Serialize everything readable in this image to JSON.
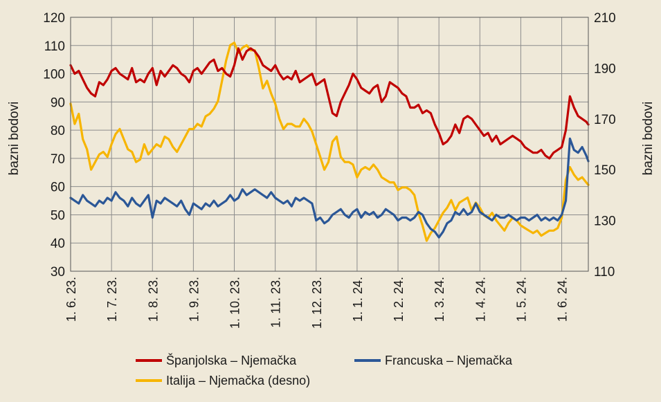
{
  "chart_data": {
    "type": "line",
    "title": "",
    "xlabel": "",
    "ylabel_left": "bazni bodovi",
    "ylabel_right": "bazni bodovi",
    "ylim_left": [
      30,
      120
    ],
    "ylim_right": [
      110,
      210
    ],
    "yticks_left": [
      "30",
      "40",
      "50",
      "60",
      "70",
      "80",
      "90",
      "100",
      "110",
      "120"
    ],
    "yticks_right": [
      "110",
      "130",
      "150",
      "170",
      "190",
      "210"
    ],
    "xticks": [
      "1. 6. 23.",
      "1. 7. 23.",
      "1. 8. 23.",
      "1. 9. 23.",
      "1. 10. 23.",
      "1. 11. 23.",
      "1. 12. 23.",
      "1. 1. 24.",
      "1. 2. 24.",
      "1. 3. 24.",
      "1. 4. 24.",
      "1. 5. 24.",
      "1. 6. 24."
    ],
    "x_end_month": 12.65,
    "grid": true,
    "legend_position": "bottom",
    "series": [
      {
        "name": "Španjolska – Njemačka",
        "axis": "left",
        "color": "#c00000",
        "x": [
          0,
          0.1,
          0.2,
          0.3,
          0.4,
          0.5,
          0.6,
          0.7,
          0.8,
          0.9,
          1,
          1.1,
          1.2,
          1.3,
          1.4,
          1.5,
          1.6,
          1.7,
          1.8,
          1.9,
          2,
          2.1,
          2.2,
          2.3,
          2.4,
          2.5,
          2.6,
          2.7,
          2.8,
          2.9,
          3,
          3.1,
          3.2,
          3.3,
          3.4,
          3.5,
          3.6,
          3.7,
          3.8,
          3.9,
          4,
          4.1,
          4.2,
          4.3,
          4.4,
          4.5,
          4.6,
          4.7,
          4.8,
          4.9,
          5,
          5.1,
          5.2,
          5.3,
          5.4,
          5.5,
          5.6,
          5.7,
          5.8,
          5.9,
          6,
          6.1,
          6.2,
          6.3,
          6.4,
          6.5,
          6.6,
          6.7,
          6.8,
          6.9,
          7,
          7.1,
          7.2,
          7.3,
          7.4,
          7.5,
          7.6,
          7.7,
          7.8,
          7.9,
          8,
          8.1,
          8.2,
          8.3,
          8.4,
          8.5,
          8.6,
          8.7,
          8.8,
          8.9,
          9,
          9.1,
          9.2,
          9.3,
          9.4,
          9.5,
          9.6,
          9.7,
          9.8,
          9.9,
          10,
          10.1,
          10.2,
          10.3,
          10.4,
          10.5,
          10.6,
          10.7,
          10.8,
          10.9,
          11,
          11.1,
          11.2,
          11.3,
          11.4,
          11.5,
          11.6,
          11.7,
          11.8,
          11.9,
          12,
          12.1,
          12.2,
          12.3,
          12.4,
          12.5,
          12.6,
          12.65
        ],
        "values": [
          103,
          100,
          101,
          98,
          95,
          93,
          92,
          97,
          96,
          98,
          101,
          102,
          100,
          99,
          98,
          102,
          97,
          98,
          97,
          100,
          102,
          96,
          101,
          99,
          101,
          103,
          102,
          100,
          99,
          97,
          101,
          102,
          100,
          102,
          104,
          105,
          101,
          102,
          100,
          99,
          103,
          109,
          105,
          108,
          109,
          108,
          106,
          103,
          102,
          101,
          103,
          100,
          98,
          99,
          98,
          101,
          97,
          98,
          99,
          100,
          96,
          97,
          98,
          92,
          86,
          85,
          90,
          93,
          96,
          100,
          98,
          95,
          94,
          93,
          95,
          96,
          90,
          92,
          97,
          96,
          95,
          93,
          92,
          88,
          88,
          89,
          86,
          87,
          86,
          82,
          79,
          75,
          76,
          78,
          82,
          79,
          84,
          85,
          84,
          82,
          80,
          78,
          79,
          76,
          78,
          75,
          76,
          77,
          78,
          77,
          76,
          74,
          73,
          72,
          72,
          73,
          71,
          70,
          72,
          73,
          74,
          80,
          92,
          88,
          85,
          84,
          83,
          82
        ]
      },
      {
        "name": "Francuska – Njemačka",
        "axis": "left",
        "color": "#2b5797",
        "x": [
          0,
          0.1,
          0.2,
          0.3,
          0.4,
          0.5,
          0.6,
          0.7,
          0.8,
          0.9,
          1,
          1.1,
          1.2,
          1.3,
          1.4,
          1.5,
          1.6,
          1.7,
          1.8,
          1.9,
          2,
          2.1,
          2.2,
          2.3,
          2.4,
          2.5,
          2.6,
          2.7,
          2.8,
          2.9,
          3,
          3.1,
          3.2,
          3.3,
          3.4,
          3.5,
          3.6,
          3.7,
          3.8,
          3.9,
          4,
          4.1,
          4.2,
          4.3,
          4.4,
          4.5,
          4.6,
          4.7,
          4.8,
          4.9,
          5,
          5.1,
          5.2,
          5.3,
          5.4,
          5.5,
          5.6,
          5.7,
          5.8,
          5.9,
          6,
          6.1,
          6.2,
          6.3,
          6.4,
          6.5,
          6.6,
          6.7,
          6.8,
          6.9,
          7,
          7.1,
          7.2,
          7.3,
          7.4,
          7.5,
          7.6,
          7.7,
          7.8,
          7.9,
          8,
          8.1,
          8.2,
          8.3,
          8.4,
          8.5,
          8.6,
          8.7,
          8.8,
          8.9,
          9,
          9.1,
          9.2,
          9.3,
          9.4,
          9.5,
          9.6,
          9.7,
          9.8,
          9.9,
          10,
          10.1,
          10.2,
          10.3,
          10.4,
          10.5,
          10.6,
          10.7,
          10.8,
          10.9,
          11,
          11.1,
          11.2,
          11.3,
          11.4,
          11.5,
          11.6,
          11.7,
          11.8,
          11.9,
          12,
          12.1,
          12.2,
          12.3,
          12.4,
          12.5,
          12.6,
          12.65
        ],
        "values": [
          56,
          55,
          54,
          57,
          55,
          54,
          53,
          55,
          54,
          56,
          55,
          58,
          56,
          55,
          53,
          56,
          54,
          53,
          55,
          57,
          49,
          55,
          54,
          56,
          55,
          54,
          53,
          55,
          52,
          50,
          54,
          53,
          52,
          54,
          53,
          55,
          53,
          54,
          55,
          57,
          55,
          56,
          59,
          57,
          58,
          59,
          58,
          57,
          56,
          58,
          56,
          55,
          54,
          55,
          53,
          56,
          55,
          56,
          55,
          54,
          48,
          49,
          47,
          48,
          50,
          51,
          52,
          50,
          49,
          51,
          52,
          49,
          51,
          50,
          51,
          49,
          50,
          52,
          51,
          50,
          48,
          49,
          49,
          48,
          49,
          51,
          50,
          47,
          45,
          44,
          42,
          44,
          47,
          48,
          51,
          50,
          52,
          50,
          51,
          54,
          51,
          50,
          49,
          48,
          50,
          49,
          49,
          50,
          49,
          48,
          49,
          49,
          48,
          49,
          50,
          48,
          49,
          48,
          49,
          48,
          50,
          55,
          77,
          73,
          72,
          74,
          71,
          69
        ]
      },
      {
        "name": "Italija – Njemačka (desno)",
        "axis": "right",
        "color": "#f7b500",
        "x": [
          0,
          0.1,
          0.2,
          0.3,
          0.4,
          0.5,
          0.6,
          0.7,
          0.8,
          0.9,
          1,
          1.1,
          1.2,
          1.3,
          1.4,
          1.5,
          1.6,
          1.7,
          1.8,
          1.9,
          2,
          2.1,
          2.2,
          2.3,
          2.4,
          2.5,
          2.6,
          2.7,
          2.8,
          2.9,
          3,
          3.1,
          3.2,
          3.3,
          3.4,
          3.5,
          3.6,
          3.7,
          3.8,
          3.9,
          4,
          4.1,
          4.2,
          4.3,
          4.4,
          4.5,
          4.6,
          4.7,
          4.8,
          4.9,
          5,
          5.1,
          5.2,
          5.3,
          5.4,
          5.5,
          5.6,
          5.7,
          5.8,
          5.9,
          6,
          6.1,
          6.2,
          6.3,
          6.4,
          6.5,
          6.6,
          6.7,
          6.8,
          6.9,
          7,
          7.1,
          7.2,
          7.3,
          7.4,
          7.5,
          7.6,
          7.7,
          7.8,
          7.9,
          8,
          8.1,
          8.2,
          8.3,
          8.4,
          8.5,
          8.6,
          8.7,
          8.8,
          8.9,
          9,
          9.1,
          9.2,
          9.3,
          9.4,
          9.5,
          9.6,
          9.7,
          9.8,
          9.9,
          10,
          10.1,
          10.2,
          10.3,
          10.4,
          10.5,
          10.6,
          10.7,
          10.8,
          10.9,
          11,
          11.1,
          11.2,
          11.3,
          11.4,
          11.5,
          11.6,
          11.7,
          11.8,
          11.9,
          12,
          12.1,
          12.2,
          12.3,
          12.4,
          12.5,
          12.6,
          12.65
        ],
        "values": [
          176,
          168,
          172,
          162,
          158,
          150,
          153,
          156,
          157,
          155,
          160,
          164,
          166,
          162,
          158,
          157,
          153,
          154,
          160,
          156,
          158,
          160,
          159,
          163,
          162,
          159,
          157,
          160,
          163,
          166,
          166,
          168,
          167,
          171,
          172,
          174,
          177,
          185,
          193,
          199,
          200,
          196,
          198,
          199,
          197,
          197,
          190,
          182,
          185,
          180,
          176,
          170,
          166,
          168,
          168,
          167,
          167,
          170,
          168,
          165,
          160,
          155,
          150,
          153,
          161,
          163,
          155,
          153,
          153,
          152,
          147,
          150,
          151,
          150,
          152,
          150,
          147,
          146,
          145,
          145,
          142,
          143,
          143,
          142,
          140,
          133,
          128,
          122,
          125,
          127,
          130,
          133,
          135,
          138,
          134,
          137,
          138,
          139,
          134,
          137,
          135,
          132,
          131,
          133,
          130,
          128,
          126,
          129,
          131,
          130,
          128,
          127,
          126,
          125,
          126,
          124,
          125,
          126,
          126,
          127,
          131,
          146,
          151,
          148,
          146,
          147,
          145,
          144
        ]
      }
    ]
  }
}
